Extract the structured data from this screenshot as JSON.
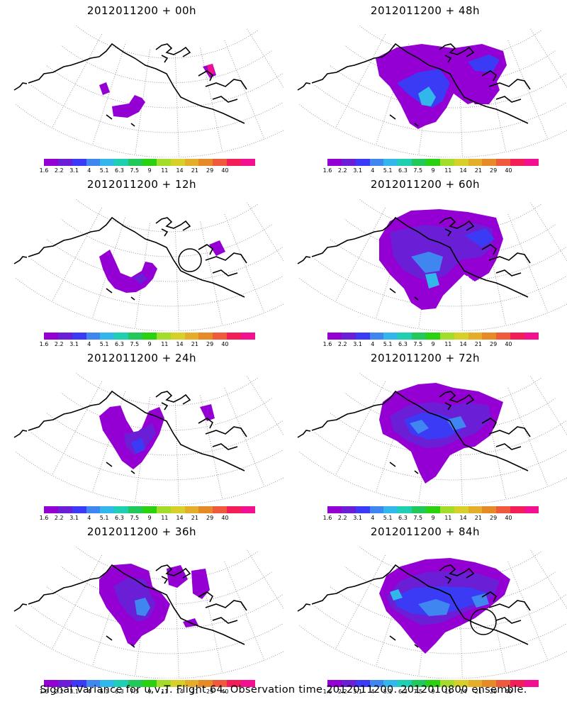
{
  "caption": "Signal Variance for u,v,T. Flight 64. Observation time 2012011200. 2012010800 ensemble.",
  "colorbar": {
    "labels": [
      "1.6",
      "2.2",
      "3.1",
      "4",
      "5.1",
      "6.3",
      "7.5",
      "9",
      "11",
      "14",
      "21",
      "29",
      "40"
    ],
    "colors": [
      "#9400d3",
      "#6a1fd6",
      "#3b3bf5",
      "#3f86f0",
      "#31b7ea",
      "#1fcfb1",
      "#22c95a",
      "#2ad10e",
      "#a4dc2c",
      "#d8d02a",
      "#e4ae2b",
      "#e68a28",
      "#f05a3c",
      "#f21e57",
      "#f01090"
    ]
  },
  "chart_data": [
    {
      "type": "heatmap",
      "title": "2012011200 + 00h",
      "lead_hours": 0
    },
    {
      "type": "heatmap",
      "title": "2012011200 + 48h",
      "lead_hours": 48
    },
    {
      "type": "heatmap",
      "title": "2012011200 + 12h",
      "lead_hours": 12
    },
    {
      "type": "heatmap",
      "title": "2012011200 + 60h",
      "lead_hours": 60
    },
    {
      "type": "heatmap",
      "title": "2012011200 + 24h",
      "lead_hours": 24
    },
    {
      "type": "heatmap",
      "title": "2012011200 + 72h",
      "lead_hours": 72
    },
    {
      "type": "heatmap",
      "title": "2012011200 + 36h",
      "lead_hours": 36
    },
    {
      "type": "heatmap",
      "title": "2012011200 + 84h",
      "lead_hours": 84
    }
  ]
}
